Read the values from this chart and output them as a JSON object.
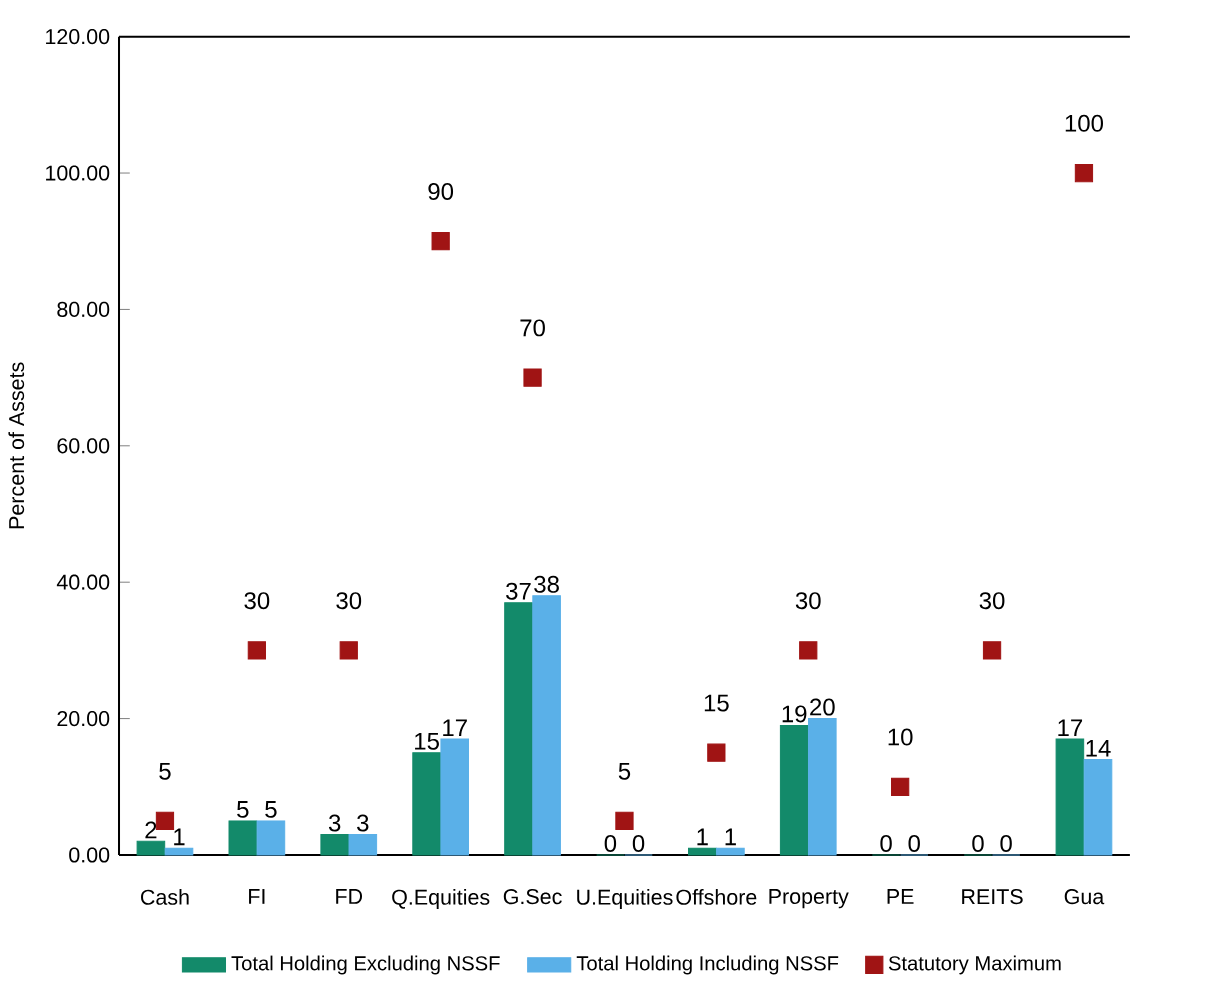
{
  "chart_data": {
    "type": "bar",
    "ylabel": "Percent of Assets",
    "categories": [
      "Cash",
      "FI",
      "FD",
      "Q.Equities",
      "G.Sec",
      "U.Equities",
      "Offshore",
      "Property",
      "PE",
      "REITS",
      "Gua"
    ],
    "series": [
      {
        "name": "Total Holding Excluding NSSF",
        "color": "#138a6a",
        "values": [
          2,
          5,
          3,
          15,
          37,
          0,
          1,
          19,
          0,
          0,
          17
        ]
      },
      {
        "name": "Total Holding Including NSSF",
        "color": "#5ab0e8",
        "values": [
          1,
          5,
          3,
          17,
          38,
          0,
          1,
          20,
          0,
          0,
          14
        ]
      },
      {
        "name": "Statutory Maximum",
        "color": "#a01414",
        "type": "scatter",
        "marker": "square",
        "values": [
          5,
          30,
          30,
          90,
          70,
          5,
          15,
          30,
          10,
          30,
          100
        ]
      }
    ],
    "ylim": [
      0,
      120
    ],
    "yticks": [
      {
        "value": 0,
        "label": "0.00"
      },
      {
        "value": 20,
        "label": "20.00"
      },
      {
        "value": 40,
        "label": "40.00"
      },
      {
        "value": 60,
        "label": "60.00"
      },
      {
        "value": 80,
        "label": "80.00"
      },
      {
        "value": 100,
        "label": "100.00"
      },
      {
        "value": 120,
        "label": "120.00"
      }
    ],
    "data_labels": true,
    "legend": "bottom"
  }
}
